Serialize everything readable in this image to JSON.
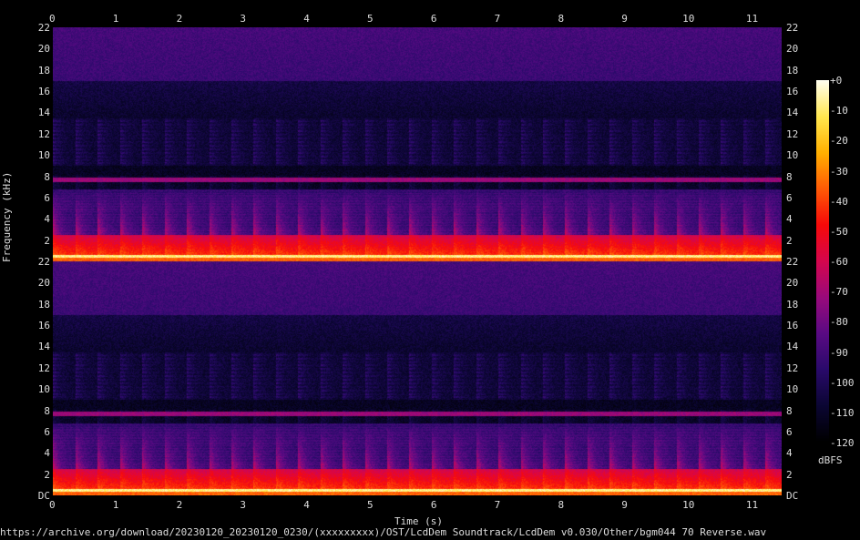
{
  "chart_data": {
    "type": "heatmap",
    "title": "",
    "xlabel": "Time (s)",
    "ylabel": "Frequency (kHz)",
    "xlim": [
      0,
      11.46
    ],
    "ylim": [
      0,
      22
    ],
    "x_ticks": [
      "0",
      "1",
      "2",
      "3",
      "4",
      "5",
      "6",
      "7",
      "8",
      "9",
      "10",
      "11"
    ],
    "y_ticks_channel": [
      "22",
      "20",
      "18",
      "16",
      "14",
      "12",
      "10",
      "8",
      "6",
      "4",
      "2"
    ],
    "y_tick_dc": "DC",
    "channels": 2,
    "colorbar": {
      "label": "dBFS",
      "range": [
        -120,
        0
      ],
      "ticks": [
        "+0",
        "-10",
        "-20",
        "-30",
        "-40",
        "-50",
        "-60",
        "-70",
        "-80",
        "-90",
        "-100",
        "-110",
        "-120"
      ],
      "colors": [
        "#000000",
        "#0b0633",
        "#2a0a6b",
        "#5a0a84",
        "#9a0a7c",
        "#d5064e",
        "#f70a0a",
        "#ff5a06",
        "#ffb000",
        "#ffe850",
        "#fffff0"
      ]
    },
    "features": {
      "tone_line_khz": 7.7,
      "strong_low_band_khz": [
        0,
        0.5
      ],
      "note_period_s": 0.35
    }
  },
  "footer": {
    "source": "https://archive.org/download/20230120_20230120_0230/(xxxxxxxxx)/OST/LcdDem Soundtrack/LcdDem v0.030/Other/bgm044 70 Reverse.wav"
  }
}
